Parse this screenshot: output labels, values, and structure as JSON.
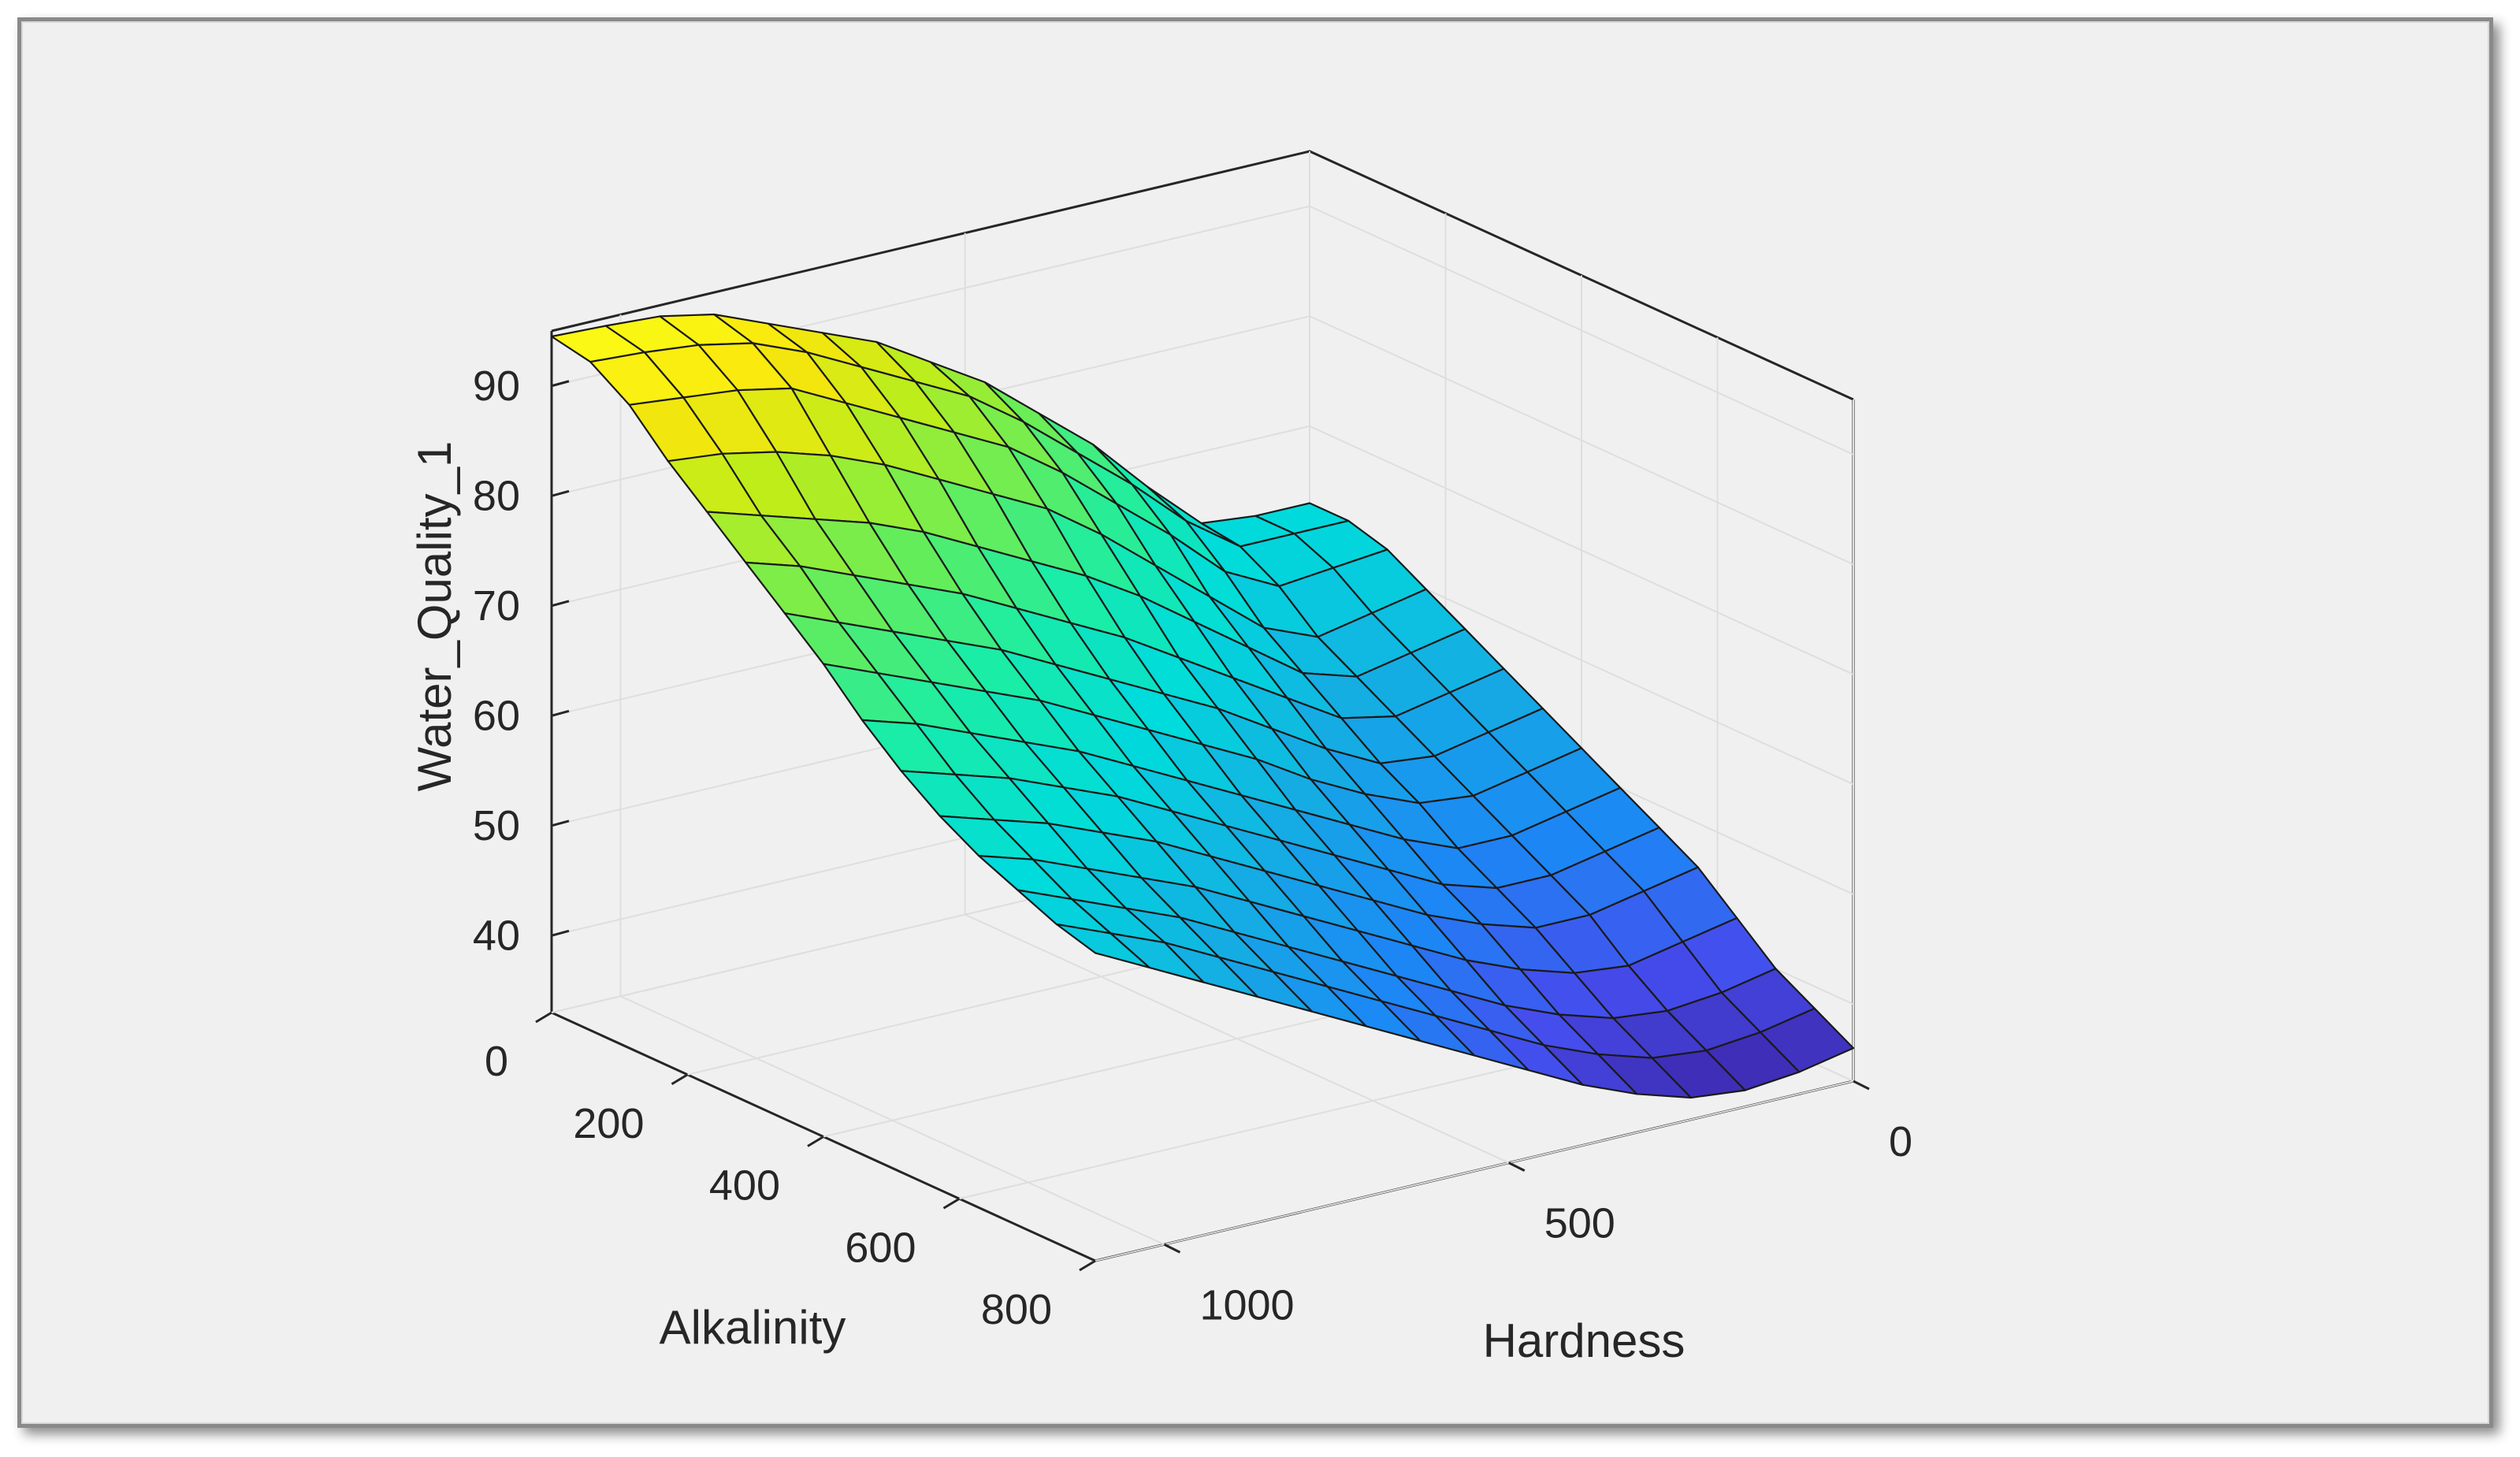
{
  "chart_data": {
    "type": "surface3d",
    "title": "",
    "xlabel": "Hardness",
    "ylabel": "Alkalinity",
    "zlabel": "Water_Quality_1",
    "x_range": [
      0,
      1100
    ],
    "y_range": [
      0,
      800
    ],
    "z_range": [
      33,
      95
    ],
    "x_ticks": [
      0,
      500,
      1000
    ],
    "y_ticks": [
      0,
      200,
      400,
      600,
      800
    ],
    "z_ticks": [
      40,
      50,
      60,
      70,
      80,
      90
    ],
    "x_tick_labels": [
      "0",
      "500",
      "1000"
    ],
    "y_tick_labels": [
      "0",
      "200",
      "400",
      "600",
      "800"
    ],
    "z_tick_labels": [
      "40",
      "50",
      "60",
      "70",
      "80",
      "90"
    ],
    "colormap": "parula",
    "grid": true,
    "mesh": "15x15",
    "x": [
      0,
      78.6,
      157.1,
      235.7,
      314.3,
      392.9,
      471.4,
      550,
      628.6,
      707.1,
      785.7,
      864.3,
      942.9,
      1021.4,
      1100
    ],
    "y": [
      0,
      57.1,
      114.3,
      171.4,
      228.6,
      285.7,
      342.9,
      400,
      457.1,
      514.3,
      571.4,
      628.6,
      685.7,
      742.9,
      800
    ],
    "z": [
      [
        63.0,
        63.0,
        63.5,
        68.0,
        73.0,
        77.0,
        81.0,
        84.0,
        87.0,
        89.0,
        91.0,
        93.0,
        94.0,
        94.3,
        94.5
      ],
      [
        63.0,
        63.0,
        63.0,
        66.5,
        71.0,
        75.0,
        79.0,
        82.5,
        85.0,
        87.5,
        90.0,
        92.0,
        93.0,
        93.5,
        93.8
      ],
      [
        62.0,
        61.5,
        61.0,
        63.5,
        68.0,
        72.0,
        76.0,
        79.5,
        82.0,
        84.5,
        87.0,
        89.5,
        90.5,
        91.0,
        91.5
      ],
      [
        60.0,
        59.0,
        58.0,
        60.0,
        64.0,
        68.0,
        72.0,
        75.5,
        78.0,
        80.5,
        83.0,
        85.0,
        86.5,
        87.5,
        88.0
      ],
      [
        58.0,
        57.0,
        56.0,
        57.5,
        61.0,
        64.5,
        68.0,
        71.0,
        73.5,
        76.0,
        78.5,
        80.5,
        82.0,
        83.5,
        85.0
      ],
      [
        56.0,
        55.0,
        54.0,
        55.0,
        58.0,
        61.0,
        64.0,
        67.0,
        69.5,
        72.0,
        74.5,
        76.5,
        78.5,
        80.5,
        82.0
      ],
      [
        54.0,
        53.0,
        52.0,
        52.5,
        55.0,
        58.0,
        61.0,
        63.5,
        66.0,
        68.5,
        71.0,
        73.0,
        75.0,
        77.0,
        79.0
      ],
      [
        52.0,
        51.0,
        50.0,
        50.5,
        52.5,
        55.0,
        58.0,
        60.5,
        63.0,
        65.5,
        68.0,
        70.0,
        72.0,
        74.0,
        76.0
      ],
      [
        50.0,
        49.0,
        48.0,
        48.0,
        50.0,
        52.5,
        55.0,
        57.5,
        60.0,
        62.5,
        65.0,
        67.0,
        69.0,
        71.0,
        72.5
      ],
      [
        48.0,
        47.0,
        46.0,
        46.0,
        47.5,
        50.0,
        52.5,
        55.0,
        57.5,
        60.0,
        62.5,
        64.5,
        66.5,
        68.0,
        69.5
      ],
      [
        46.0,
        45.0,
        44.0,
        44.0,
        45.5,
        47.5,
        50.0,
        52.5,
        55.0,
        57.5,
        60.0,
        62.0,
        64.0,
        65.5,
        67.0
      ],
      [
        43.0,
        42.0,
        41.0,
        41.5,
        43.0,
        45.0,
        47.5,
        50.0,
        52.5,
        55.0,
        57.5,
        59.5,
        61.5,
        63.5,
        65.0
      ],
      [
        40.0,
        39.0,
        38.5,
        39.0,
        40.5,
        42.5,
        45.0,
        47.5,
        50.0,
        52.5,
        55.0,
        57.5,
        59.5,
        61.5,
        63.5
      ],
      [
        38.0,
        37.0,
        36.5,
        37.0,
        38.5,
        40.5,
        43.0,
        45.5,
        48.0,
        50.5,
        53.0,
        55.5,
        58.0,
        60.0,
        62.0
      ],
      [
        36.0,
        35.0,
        34.5,
        35.0,
        36.5,
        38.5,
        41.0,
        43.5,
        46.0,
        48.5,
        51.0,
        53.5,
        56.0,
        58.5,
        61.0
      ]
    ]
  }
}
